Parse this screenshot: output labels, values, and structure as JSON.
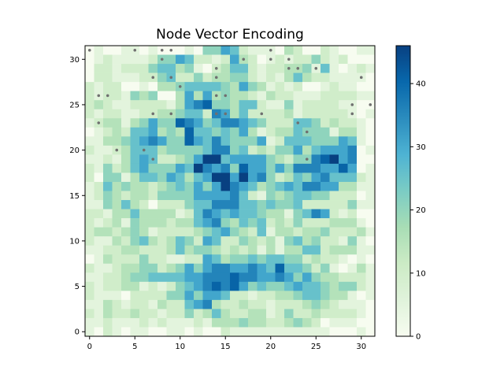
{
  "chart_data": {
    "type": "heatmap",
    "title": "Node Vector Encoding",
    "xlabel": "",
    "ylabel": "",
    "xlim": [
      -0.5,
      31.5
    ],
    "ylim": [
      -0.5,
      31.5
    ],
    "xticks": [
      0,
      5,
      10,
      15,
      20,
      25,
      30
    ],
    "yticks": [
      0,
      5,
      10,
      15,
      20,
      25,
      30
    ],
    "grid": false,
    "colormap": "GnBu",
    "color_range": [
      0,
      46
    ],
    "colorbar_ticks": [
      0,
      10,
      20,
      30,
      40
    ],
    "colorbar_colors": [
      "#f7fcf0",
      "#e0f3db",
      "#ccebc5",
      "#a8ddb5",
      "#7bccc4",
      "#4eb3d3",
      "#2b8cbe",
      "#0868ac",
      "#084081"
    ],
    "marker_color": "#707070",
    "note_values": "values estimated from cell colors, rows listed top (y=31) to bottom (y=0)",
    "rows": [
      "01001101000104465211103200210011",
      "01211112446522126320121224212000",
      "02212224553410235521223341510121",
      "02211122452242334421213532211110",
      "21220010334555543643121200121100",
      "21221434003636343321322111222211",
      "23211222213678443552114122221100",
      "21221122334552763522223122222101",
      "12331346448764577654222554232210",
      "01232556343855454631233544413310",
      "11334567644865754446125554446510",
      "21123555344445774523244635666701",
      "11213565223469956666432447896700",
      "21423564446597674866464777668601",
      "20441355465356996967423546755521",
      "12534332345464697653456577663311",
      "12432332444466667521434554422201",
      "11435320222455777554544522222411",
      "22133533331257656554331457621200",
      "21231433323356743545232422233310",
      "23323431222234564325133233422231",
      "21132453235426522432314534221410",
      "11223322235344323231313355233311",
      "01322242211226534454554423221010",
      "21123344234646776676585542410131",
      "11223445555667778776676464332221",
      "21223312124567878645445655434421",
      "21110222244646652212233455433101",
      "11321221322567322322122234321110",
      "21322322122423532233124223222210",
      "11211121211121333433223432011100",
      "10210110011010021111111111100010"
    ],
    "marker_rows": [
      "10000100110000000000100000000000",
      "00000000100000000100101000000000",
      "00000000000000100000001101000000",
      "00000001010000100000000000000010",
      "00000000001000000000000000000000",
      "01100000000000110000000000000000",
      "00000000000000000000000000000101",
      "00000001010000110001000000000100",
      "01000000000000000000000100000000",
      "00000000000000000000000010000000",
      "00000000000000000000000000000000",
      "00010010000000000000000000000000",
      "00000001000000000000000010000000",
      "00000000000000000000000000000000",
      "00000000000000000000000000000000",
      "00000000000000000000000000000000",
      "00000000000000000000000000000000",
      "00000000000000000000000000000000",
      "00000000000000000000000000000000",
      "00000000000000000000000000000000",
      "00000000000000000000000000000000",
      "00000000000000000000000000000000",
      "00000000000000000000000000000000",
      "00000000000000000000000000000000",
      "00000000000000000000000000000000",
      "00000000000000000000000000000000",
      "00000000000000000000000000000000",
      "00000000000000000000000000000000",
      "00000000000000000000000000000000",
      "00000000000000000000000000000000",
      "00000000000000000000000000000000",
      "00000000000000000000000000000000"
    ]
  }
}
